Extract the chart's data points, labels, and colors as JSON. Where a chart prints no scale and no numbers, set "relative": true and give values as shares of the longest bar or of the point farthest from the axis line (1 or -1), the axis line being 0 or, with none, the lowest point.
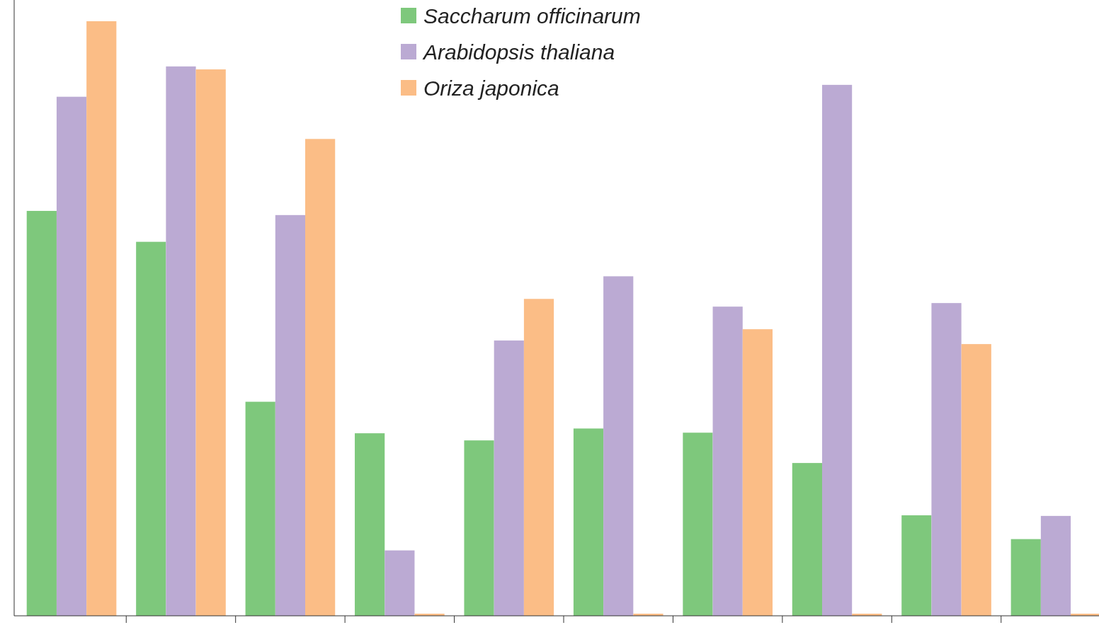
{
  "chart_data": {
    "type": "bar",
    "relative": true,
    "legend": "top",
    "categories": [
      null,
      null,
      null,
      null,
      null,
      null,
      null,
      null,
      null,
      null
    ],
    "series": [
      {
        "name": "Saccharum officinarum",
        "color": "#7ec87c",
        "values": [
          0.681,
          0.629,
          0.36,
          0.307,
          0.295,
          0.315,
          0.308,
          0.257,
          0.169,
          0.129
        ]
      },
      {
        "name": "Arabidopsis thaliana",
        "color": "#bbaad3",
        "values": [
          0.873,
          0.924,
          0.674,
          0.11,
          0.463,
          0.571,
          0.52,
          0.893,
          0.526,
          0.168
        ]
      },
      {
        "name": "Oriza japonica",
        "color": "#fbbd86",
        "values": [
          1,
          0.919,
          0.802,
          0,
          0.533,
          0,
          0.482,
          0,
          0.457,
          0
        ]
      }
    ]
  }
}
